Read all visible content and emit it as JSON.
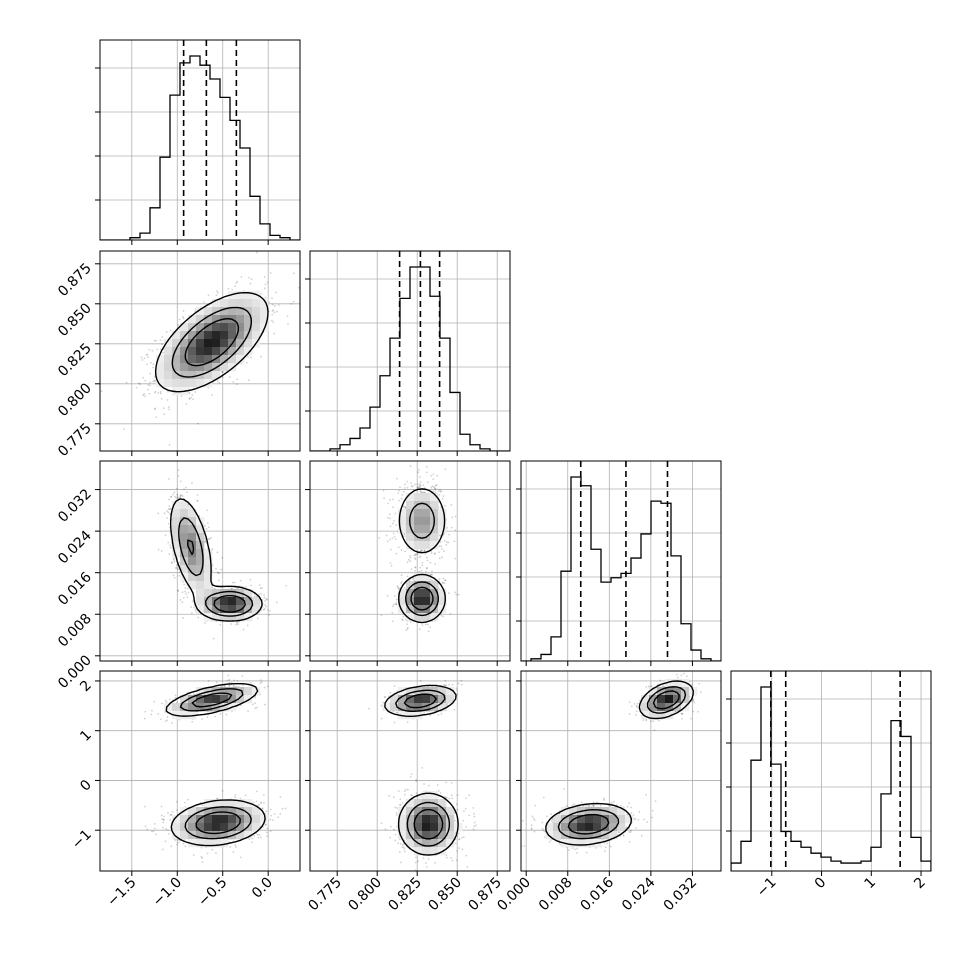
{
  "chart_data": {
    "type": "scatter",
    "subtype": "corner-plot",
    "title": "",
    "grid": true,
    "legend": "none",
    "parameters": [
      {
        "range": [
          -1.85,
          0.35
        ],
        "ticks": [
          -1.5,
          -1.0,
          -0.5,
          0.0
        ],
        "tick_labels": [
          "−1.5",
          "−1.0",
          "−0.5",
          "0.0"
        ],
        "quantiles": [
          -0.93,
          -0.68,
          -0.35
        ]
      },
      {
        "range": [
          0.758,
          0.883
        ],
        "ticks": [
          0.775,
          0.8,
          0.825,
          0.85,
          0.875
        ],
        "tick_labels": [
          "0.775",
          "0.800",
          "0.825",
          "0.850",
          "0.875"
        ],
        "quantiles": [
          0.814,
          0.827,
          0.839
        ]
      },
      {
        "range": [
          -0.001,
          0.0375
        ],
        "ticks": [
          0.0,
          0.008,
          0.016,
          0.024,
          0.032
        ],
        "tick_labels": [
          "0.000",
          "0.008",
          "0.016",
          "0.024",
          "0.032"
        ],
        "quantiles": [
          0.0105,
          0.0192,
          0.0272
        ]
      },
      {
        "range": [
          -1.82,
          2.2
        ],
        "ticks": [
          -1,
          0,
          1,
          2
        ],
        "tick_labels": [
          "−1",
          "0",
          "1",
          "2"
        ],
        "quantiles": [
          -1.02,
          -0.72,
          1.58
        ]
      }
    ],
    "histograms": [
      {
        "x_start": -1.85,
        "x_end": 0.35,
        "counts": [
          0,
          0,
          0,
          1,
          3,
          14,
          36,
          63,
          77,
          80,
          76,
          70,
          62,
          52,
          40,
          19,
          7,
          2,
          1,
          0
        ]
      },
      {
        "x_start": 0.758,
        "x_end": 0.883,
        "counts": [
          0,
          0,
          1,
          3,
          6,
          11,
          21,
          36,
          54,
          73,
          88,
          88,
          74,
          54,
          28,
          8,
          3,
          1,
          0,
          0
        ]
      },
      {
        "x_start": -0.001,
        "x_end": 0.0375,
        "counts": [
          0,
          1,
          3,
          11,
          41,
          84,
          80,
          51,
          36,
          38,
          40,
          47,
          58,
          73,
          72,
          48,
          17,
          5,
          1,
          0
        ]
      },
      {
        "x_start": -1.82,
        "x_end": 2.2,
        "counts": [
          4,
          15,
          56,
          93,
          54,
          20,
          15,
          12,
          9,
          7,
          5,
          4,
          4,
          5,
          12,
          39,
          76,
          68,
          17,
          5
        ]
      }
    ],
    "pairs": [
      {
        "row": 1,
        "col": 0,
        "components": [
          {
            "mean": [
              -0.62,
              0.826
            ],
            "sd": [
              0.3,
              0.015
            ],
            "rho": 0.6,
            "w": 1
          }
        ]
      },
      {
        "row": 2,
        "col": 0,
        "components": [
          {
            "mean": [
              -0.85,
              0.021
            ],
            "sd": [
              0.12,
              0.005
            ],
            "rho": -0.5,
            "w": 0.55
          },
          {
            "mean": [
              -0.42,
              0.01
            ],
            "sd": [
              0.17,
              0.0016
            ],
            "rho": 0,
            "w": 0.45
          }
        ]
      },
      {
        "row": 2,
        "col": 1,
        "components": [
          {
            "mean": [
              0.828,
              0.026
            ],
            "sd": [
              0.008,
              0.0035
            ],
            "rho": 0,
            "w": 0.5
          },
          {
            "mean": [
              0.828,
              0.011
            ],
            "sd": [
              0.007,
              0.0022
            ],
            "rho": 0,
            "w": 0.5
          }
        ]
      },
      {
        "row": 3,
        "col": 0,
        "components": [
          {
            "mean": [
              -0.62,
              1.62
            ],
            "sd": [
              0.25,
              0.16
            ],
            "rho": 0.6,
            "w": 0.35
          },
          {
            "mean": [
              -0.55,
              -0.85
            ],
            "sd": [
              0.25,
              0.22
            ],
            "rho": 0.2,
            "w": 0.65
          }
        ]
      },
      {
        "row": 3,
        "col": 1,
        "components": [
          {
            "mean": [
              0.827,
              1.6
            ],
            "sd": [
              0.011,
              0.15
            ],
            "rho": 0.3,
            "w": 0.35
          },
          {
            "mean": [
              0.832,
              -0.88
            ],
            "sd": [
              0.009,
              0.3
            ],
            "rho": 0,
            "w": 0.65
          }
        ]
      },
      {
        "row": 3,
        "col": 2,
        "components": [
          {
            "mean": [
              0.027,
              1.62
            ],
            "sd": [
              0.0025,
              0.18
            ],
            "rho": 0.4,
            "w": 0.35
          },
          {
            "mean": [
              0.012,
              -0.88
            ],
            "sd": [
              0.004,
              0.2
            ],
            "rho": 0.2,
            "w": 0.65
          }
        ]
      }
    ]
  }
}
